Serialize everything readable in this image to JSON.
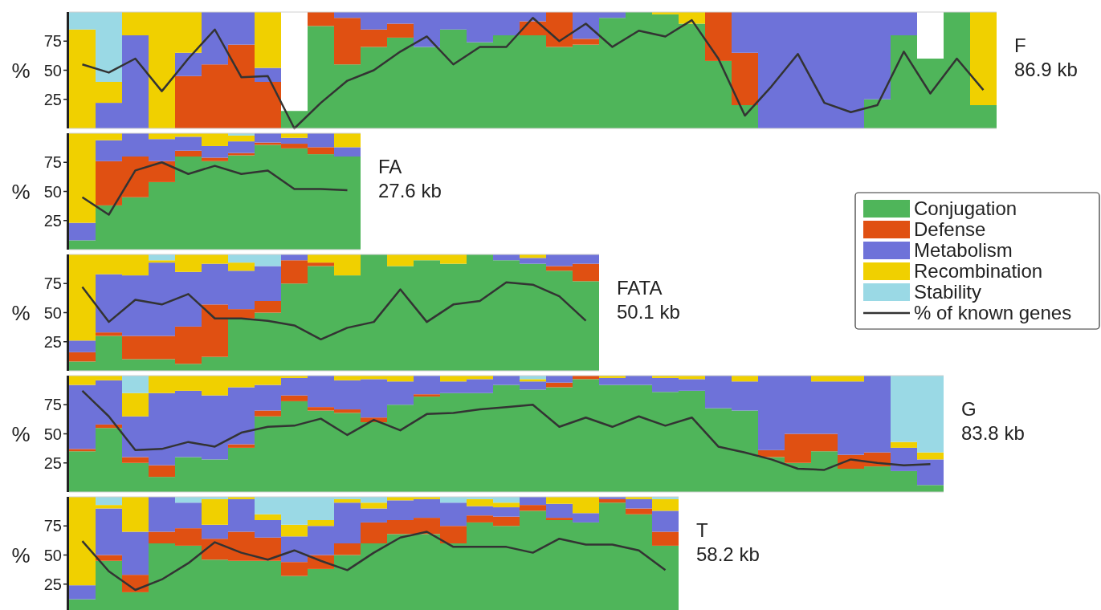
{
  "chart_data": [
    {
      "type": "bar",
      "stacked": true,
      "tick_labels": "y",
      "ylabel": "%",
      "ylim": [
        0,
        100
      ],
      "yticks": [
        25,
        50,
        75
      ],
      "annotations": [
        "F",
        "86.9 kb"
      ],
      "categories": [
        null,
        null,
        null,
        null,
        null,
        null,
        null,
        null,
        null,
        null,
        null,
        null,
        null,
        null,
        null,
        null,
        null,
        null,
        null,
        null,
        null,
        null,
        null,
        null,
        null,
        null,
        null,
        null,
        null,
        null,
        null,
        null,
        null,
        null,
        null
      ],
      "series": [
        {
          "color": "#4fb55a",
          "values": [
            0,
            0,
            0,
            0,
            0,
            0,
            0,
            0,
            15,
            88,
            55,
            70,
            78,
            70,
            85,
            74,
            80,
            80,
            70,
            72,
            95,
            100,
            98,
            90,
            58,
            20,
            0,
            0,
            0,
            0,
            25,
            80,
            60,
            100,
            20
          ]
        },
        {
          "color": "#e05012",
          "values": [
            0,
            0,
            0,
            0,
            45,
            55,
            72,
            40,
            0,
            12,
            40,
            15,
            12,
            0,
            0,
            0,
            0,
            12,
            30,
            5,
            0,
            0,
            0,
            0,
            42,
            45,
            0,
            0,
            0,
            0,
            0,
            0,
            0,
            0,
            0
          ]
        },
        {
          "color": "#6e72d9",
          "values": [
            0,
            22,
            80,
            0,
            20,
            45,
            28,
            12,
            0,
            0,
            5,
            15,
            10,
            30,
            15,
            26,
            20,
            8,
            0,
            23,
            5,
            0,
            0,
            0,
            0,
            35,
            100,
            100,
            100,
            100,
            75,
            20,
            0,
            0,
            0
          ]
        },
        {
          "color": "#f0d000",
          "values": [
            85,
            18,
            20,
            100,
            35,
            0,
            0,
            48,
            0,
            0,
            0,
            0,
            0,
            0,
            0,
            0,
            0,
            0,
            0,
            0,
            0,
            0,
            2,
            10,
            0,
            0,
            0,
            0,
            0,
            0,
            0,
            0,
            0,
            0,
            80
          ]
        },
        {
          "color": "#9ad9e5",
          "values": [
            15,
            60,
            0,
            0,
            0,
            0,
            0,
            0,
            0,
            0,
            0,
            0,
            0,
            0,
            0,
            0,
            0,
            0,
            0,
            0,
            0,
            0,
            0,
            0,
            0,
            0,
            0,
            0,
            0,
            0,
            0,
            0,
            0,
            0,
            0
          ]
        }
      ]
    },
    {
      "type": "line",
      "tick_labels": false,
      "ylim": [
        0,
        100
      ],
      "categories": [
        null,
        null,
        null,
        null,
        null,
        null,
        null,
        null,
        null,
        null,
        null,
        null,
        null,
        null,
        null,
        null,
        null,
        null,
        null,
        null,
        null,
        null,
        null,
        null,
        null,
        null,
        null,
        null,
        null,
        null,
        null,
        null,
        null,
        null,
        null
      ],
      "series": [
        {
          "color": "#333333",
          "values": [
            55,
            48,
            60,
            32,
            60,
            85,
            44,
            45,
            0,
            22,
            41,
            50,
            66,
            79,
            55,
            70,
            70,
            95,
            75,
            90,
            70,
            84,
            79,
            93,
            60,
            11,
            36,
            64,
            22,
            14,
            20,
            66,
            30,
            60,
            33
          ]
        }
      ]
    },
    {
      "type": "bar",
      "stacked": true,
      "tick_labels": "y",
      "ylabel": "%",
      "ylim": [
        0,
        100
      ],
      "yticks": [
        25,
        50,
        75
      ],
      "annotations": [
        "FA",
        "27.6 kb"
      ],
      "categories": [
        null,
        null,
        null,
        null,
        null,
        null,
        null,
        null,
        null,
        null,
        null
      ],
      "series": [
        {
          "color": "#4fb55a",
          "values": [
            8,
            38,
            45,
            58,
            80,
            76,
            81,
            90,
            87,
            82,
            80
          ]
        },
        {
          "color": "#e05012",
          "values": [
            0,
            38,
            35,
            18,
            5,
            3,
            2,
            2,
            4,
            6,
            0
          ]
        },
        {
          "color": "#6e72d9",
          "values": [
            15,
            18,
            20,
            19,
            12,
            10,
            10,
            8,
            5,
            12,
            8
          ]
        },
        {
          "color": "#f0d000",
          "values": [
            77,
            6,
            0,
            5,
            3,
            11,
            5,
            0,
            4,
            0,
            12
          ]
        },
        {
          "color": "#9ad9e5",
          "values": [
            0,
            0,
            0,
            0,
            0,
            0,
            2,
            0,
            0,
            0,
            0
          ]
        }
      ]
    },
    {
      "type": "line",
      "tick_labels": false,
      "ylim": [
        0,
        100
      ],
      "categories": [
        null,
        null,
        null,
        null,
        null,
        null,
        null,
        null,
        null,
        null,
        null
      ],
      "series": [
        {
          "color": "#333333",
          "values": [
            45,
            30,
            68,
            75,
            65,
            72,
            65,
            68,
            52,
            52,
            51
          ]
        }
      ]
    },
    {
      "type": "bar",
      "stacked": true,
      "tick_labels": "y",
      "ylabel": "%",
      "ylim": [
        0,
        100
      ],
      "yticks": [
        25,
        50,
        75
      ],
      "annotations": [
        "FATA",
        "50.1 kb"
      ],
      "legend": "right",
      "categories": [
        null,
        null,
        null,
        null,
        null,
        null,
        null,
        null,
        null,
        null,
        null,
        null,
        null,
        null,
        null,
        null,
        null,
        null,
        null,
        null
      ],
      "series": [
        {
          "name": "Conjugation",
          "color": "#4fb55a",
          "values": [
            8,
            30,
            10,
            10,
            6,
            12,
            45,
            50,
            75,
            90,
            82,
            100,
            90,
            95,
            92,
            100,
            95,
            92,
            86,
            77
          ]
        },
        {
          "name": "Defense",
          "color": "#e05012",
          "values": [
            8,
            3,
            20,
            20,
            32,
            45,
            8,
            10,
            20,
            3,
            0,
            0,
            0,
            0,
            0,
            0,
            0,
            0,
            4,
            15
          ]
        },
        {
          "name": "Metabolism",
          "color": "#6e72d9",
          "values": [
            10,
            50,
            52,
            63,
            47,
            35,
            33,
            30,
            5,
            0,
            0,
            0,
            0,
            0,
            0,
            0,
            5,
            5,
            10,
            8
          ]
        },
        {
          "name": "Recombination",
          "color": "#f0d000",
          "values": [
            74,
            17,
            18,
            2,
            15,
            8,
            7,
            0,
            0,
            7,
            18,
            0,
            10,
            5,
            8,
            0,
            0,
            3,
            0,
            0
          ]
        },
        {
          "name": "Stability",
          "color": "#9ad9e5",
          "values": [
            0,
            0,
            0,
            5,
            0,
            0,
            7,
            10,
            0,
            0,
            0,
            0,
            0,
            0,
            0,
            0,
            0,
            0,
            0,
            0
          ]
        }
      ]
    },
    {
      "type": "line",
      "tick_labels": false,
      "ylim": [
        0,
        100
      ],
      "categories": [
        null,
        null,
        null,
        null,
        null,
        null,
        null,
        null,
        null,
        null,
        null,
        null,
        null,
        null,
        null,
        null,
        null,
        null,
        null,
        null
      ],
      "series": [
        {
          "name": "% of known genes",
          "color": "#333333",
          "values": [
            72,
            42,
            61,
            57,
            66,
            45,
            45,
            43,
            39,
            27,
            37,
            42,
            70,
            42,
            57,
            60,
            76,
            74,
            64,
            43
          ]
        }
      ]
    },
    {
      "type": "bar",
      "stacked": true,
      "tick_labels": "y",
      "ylabel": "%",
      "ylim": [
        0,
        100
      ],
      "yticks": [
        25,
        50,
        75
      ],
      "annotations": [
        "G",
        "83.8 kb"
      ],
      "categories": [
        null,
        null,
        null,
        null,
        null,
        null,
        null,
        null,
        null,
        null,
        null,
        null,
        null,
        null,
        null,
        null,
        null,
        null,
        null,
        null,
        null,
        null,
        null,
        null,
        null,
        null,
        null,
        null,
        null,
        null,
        null,
        null,
        null
      ],
      "series": [
        {
          "color": "#4fb55a",
          "values": [
            35,
            55,
            25,
            13,
            30,
            28,
            38,
            65,
            78,
            70,
            68,
            60,
            75,
            82,
            85,
            85,
            92,
            88,
            90,
            97,
            92,
            92,
            86,
            87,
            72,
            70,
            30,
            25,
            35,
            20,
            22,
            18,
            6
          ]
        },
        {
          "color": "#e05012",
          "values": [
            2,
            3,
            5,
            10,
            0,
            0,
            3,
            5,
            5,
            3,
            3,
            4,
            0,
            2,
            0,
            0,
            0,
            0,
            4,
            3,
            0,
            0,
            0,
            0,
            0,
            0,
            6,
            25,
            15,
            12,
            12,
            0,
            0
          ]
        },
        {
          "color": "#6e72d9",
          "values": [
            55,
            38,
            35,
            62,
            57,
            55,
            49,
            22,
            15,
            27,
            25,
            33,
            20,
            16,
            10,
            12,
            8,
            7,
            6,
            0,
            6,
            8,
            12,
            10,
            28,
            25,
            64,
            50,
            45,
            63,
            66,
            20,
            22
          ]
        },
        {
          "color": "#f0d000",
          "values": [
            8,
            4,
            20,
            15,
            13,
            17,
            10,
            8,
            2,
            0,
            4,
            3,
            5,
            0,
            5,
            3,
            0,
            2,
            0,
            0,
            2,
            0,
            2,
            3,
            0,
            5,
            0,
            0,
            5,
            5,
            0,
            5,
            6
          ]
        },
        {
          "color": "#9ad9e5",
          "values": [
            0,
            0,
            15,
            0,
            0,
            0,
            0,
            0,
            0,
            0,
            0,
            0,
            0,
            0,
            0,
            0,
            0,
            3,
            0,
            0,
            0,
            0,
            0,
            0,
            0,
            0,
            0,
            0,
            0,
            0,
            0,
            57,
            66
          ]
        }
      ]
    },
    {
      "type": "line",
      "tick_labels": false,
      "ylim": [
        0,
        100
      ],
      "categories": [
        null,
        null,
        null,
        null,
        null,
        null,
        null,
        null,
        null,
        null,
        null,
        null,
        null,
        null,
        null,
        null,
        null,
        null,
        null,
        null,
        null,
        null,
        null,
        null,
        null,
        null,
        null,
        null,
        null,
        null,
        null,
        null,
        null
      ],
      "series": [
        {
          "color": "#333333",
          "values": [
            87,
            65,
            36,
            37,
            43,
            39,
            51,
            56,
            57,
            63,
            49,
            62,
            53,
            67,
            68,
            71,
            73,
            75,
            56,
            64,
            56,
            65,
            57,
            64,
            39,
            34,
            28,
            20,
            19,
            28,
            25,
            23,
            24
          ]
        }
      ]
    },
    {
      "type": "bar",
      "stacked": true,
      "tick_labels": "y",
      "ylabel": "%",
      "ylim": [
        0,
        100
      ],
      "yticks": [
        25,
        50,
        75
      ],
      "annotations": [
        "T",
        "58.2 kb"
      ],
      "categories": [
        null,
        null,
        null,
        null,
        null,
        null,
        null,
        null,
        null,
        null,
        null,
        null,
        null,
        null,
        null,
        null,
        null,
        null,
        null,
        null,
        null,
        null,
        null
      ],
      "series": [
        {
          "color": "#4fb55a",
          "values": [
            12,
            45,
            18,
            60,
            58,
            46,
            45,
            45,
            32,
            38,
            50,
            60,
            68,
            68,
            60,
            78,
            75,
            88,
            80,
            78,
            95,
            85,
            58
          ]
        },
        {
          "color": "#e05012",
          "values": [
            0,
            5,
            15,
            10,
            15,
            18,
            25,
            20,
            12,
            12,
            10,
            18,
            12,
            14,
            15,
            6,
            8,
            5,
            2,
            0,
            3,
            5,
            12
          ]
        },
        {
          "color": "#6e72d9",
          "values": [
            12,
            40,
            37,
            30,
            22,
            12,
            28,
            15,
            22,
            25,
            35,
            12,
            17,
            16,
            20,
            8,
            8,
            7,
            12,
            8,
            2,
            8,
            18
          ]
        },
        {
          "color": "#f0d000",
          "values": [
            76,
            3,
            30,
            0,
            0,
            22,
            2,
            5,
            10,
            5,
            3,
            5,
            3,
            2,
            0,
            6,
            4,
            0,
            6,
            14,
            0,
            2,
            10
          ]
        },
        {
          "color": "#9ad9e5",
          "values": [
            0,
            7,
            0,
            0,
            5,
            2,
            0,
            15,
            24,
            20,
            2,
            5,
            0,
            0,
            5,
            2,
            5,
            0,
            0,
            0,
            0,
            0,
            2
          ]
        }
      ]
    },
    {
      "type": "line",
      "tick_labels": false,
      "ylim": [
        0,
        100
      ],
      "categories": [
        null,
        null,
        null,
        null,
        null,
        null,
        null,
        null,
        null,
        null,
        null,
        null,
        null,
        null,
        null,
        null,
        null,
        null,
        null,
        null,
        null,
        null,
        null
      ],
      "series": [
        {
          "color": "#333333",
          "values": [
            62,
            36,
            20,
            29,
            43,
            61,
            52,
            46,
            54,
            45,
            37,
            52,
            65,
            70,
            57,
            57,
            57,
            52,
            64,
            59,
            59,
            54,
            37
          ]
        }
      ]
    }
  ]
}
